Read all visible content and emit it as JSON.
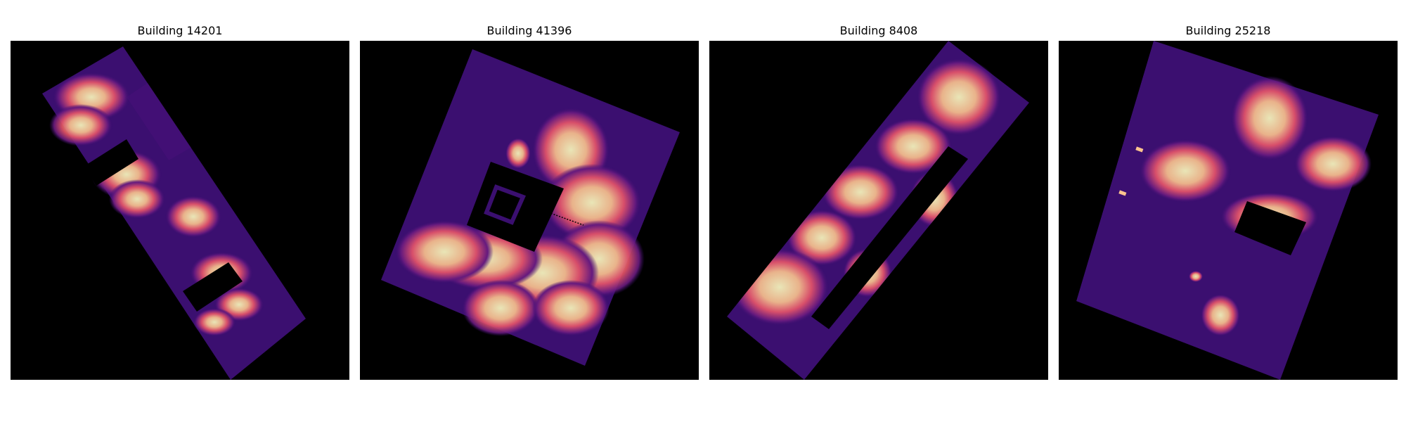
{
  "panels": [
    {
      "title": "Building 14201"
    },
    {
      "title": "Building 41396"
    },
    {
      "title": "Building 8408"
    },
    {
      "title": "Building 25218"
    }
  ],
  "colors": {
    "background": "#ffffff",
    "void": "#000000",
    "heat_low": "#3b0f70",
    "heat_mid": "#b5367a",
    "heat_high": "#fcfdbf"
  }
}
